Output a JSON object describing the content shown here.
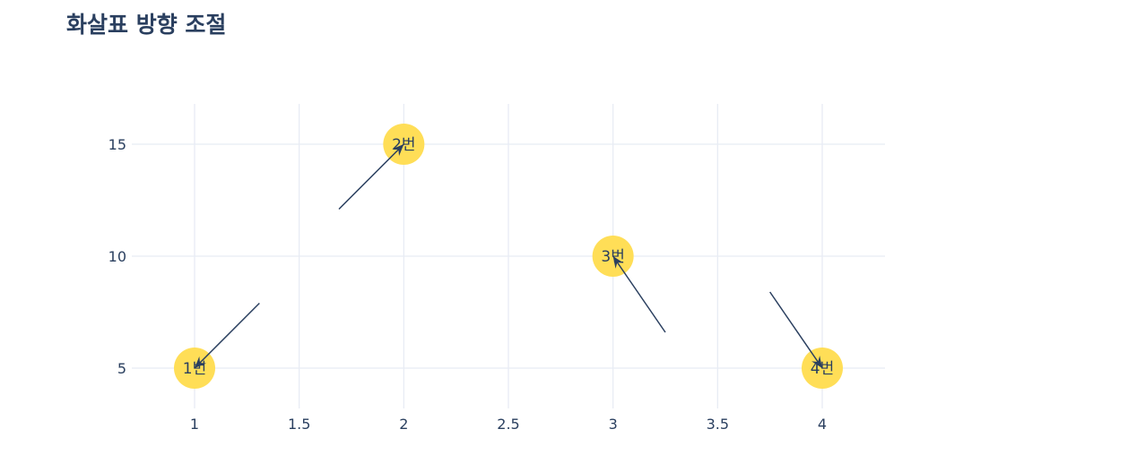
{
  "chart_data": {
    "type": "scatter",
    "title": "화살표 방향 조절",
    "xlabel": "",
    "ylabel": "",
    "xlim": [
      0.7,
      4.3
    ],
    "ylim": [
      3.2,
      16.8
    ],
    "x_ticks": [
      1,
      1.5,
      2,
      2.5,
      3,
      3.5,
      4
    ],
    "x_tick_labels": [
      "1",
      "1.5",
      "2",
      "2.5",
      "3",
      "3.5",
      "4"
    ],
    "y_ticks": [
      5,
      10,
      15
    ],
    "y_tick_labels": [
      "5",
      "10",
      "15"
    ],
    "grid": true,
    "points": [
      {
        "x": 1,
        "y": 5,
        "text": "1번"
      },
      {
        "x": 2,
        "y": 15,
        "text": "2번"
      },
      {
        "x": 3,
        "y": 10,
        "text": "3번"
      },
      {
        "x": 4,
        "y": 5,
        "text": "4번"
      }
    ],
    "annotations": [
      {
        "x": 1,
        "y": 5,
        "tail": [
          1.31,
          7.9
        ]
      },
      {
        "x": 2,
        "y": 15,
        "tail": [
          1.69,
          12.1
        ]
      },
      {
        "x": 3,
        "y": 10,
        "tail": [
          3.25,
          6.6
        ]
      },
      {
        "x": 4,
        "y": 5,
        "tail": [
          3.75,
          8.4
        ]
      }
    ],
    "marker_color": "#ffde57",
    "arrow_color": "#2a3f5f",
    "text_color": "#2a3f5f"
  }
}
